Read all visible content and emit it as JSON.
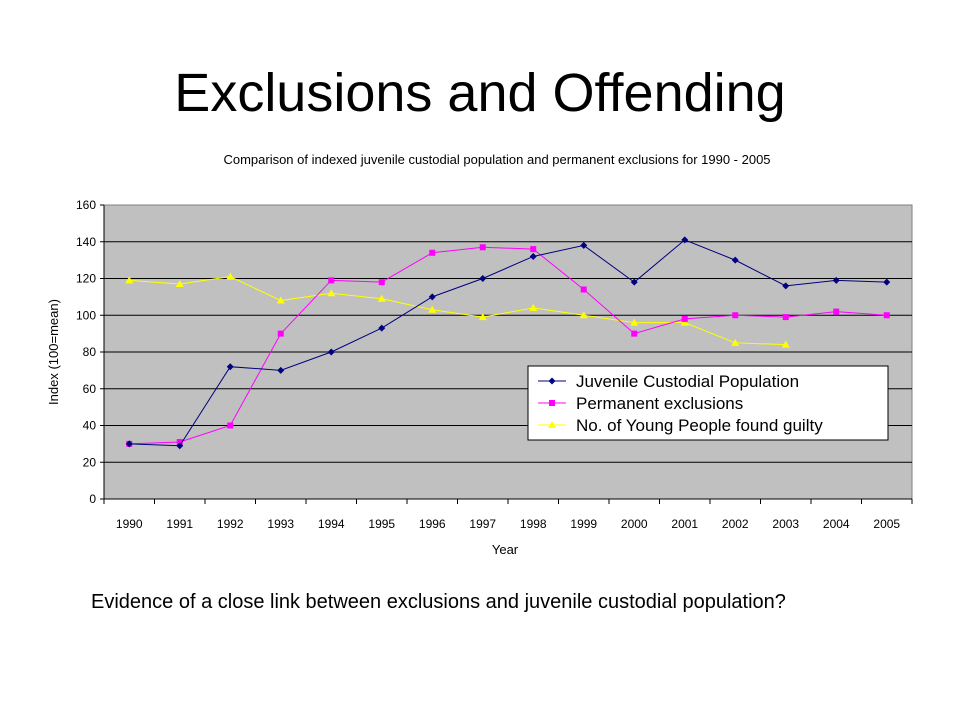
{
  "slide": {
    "title": "Exclusions and Offending",
    "caption": "Evidence of a close link between exclusions and juvenile custodial population?"
  },
  "colors": {
    "plot_bg": "#c0c0c0",
    "juvenile": "#000080",
    "exclusions": "#ff00ff",
    "guilty": "#ffff00"
  },
  "chart_data": {
    "type": "line",
    "title": "Comparison of indexed juvenile custodial population and permanent exclusions for 1990 - 2005",
    "xlabel": "Year",
    "ylabel": "Index (100=mean)",
    "ylim": [
      0,
      160
    ],
    "yticks": [
      0,
      20,
      40,
      60,
      80,
      100,
      120,
      140,
      160
    ],
    "categories": [
      "1990",
      "1991",
      "1992",
      "1993",
      "1994",
      "1995",
      "1996",
      "1997",
      "1998",
      "1999",
      "2000",
      "2001",
      "2002",
      "2003",
      "2004",
      "2005"
    ],
    "grid": "horizontal",
    "legend_position": "lower-right",
    "series": [
      {
        "name": "Juvenile Custodial Population",
        "marker": "diamond",
        "color": "#000080",
        "values": [
          30,
          29,
          72,
          70,
          80,
          93,
          110,
          120,
          132,
          138,
          118,
          141,
          130,
          116,
          119,
          118
        ]
      },
      {
        "name": "Permanent exclusions",
        "marker": "square",
        "color": "#ff00ff",
        "values": [
          30,
          31,
          40,
          90,
          119,
          118,
          134,
          137,
          136,
          114,
          90,
          98,
          100,
          99,
          102,
          100
        ]
      },
      {
        "name": "No. of Young People found guilty",
        "marker": "triangle",
        "color": "#ffff00",
        "values": [
          119,
          117,
          121,
          108,
          112,
          109,
          103,
          99,
          104,
          100,
          96,
          96,
          85,
          84,
          null,
          null
        ]
      }
    ]
  }
}
